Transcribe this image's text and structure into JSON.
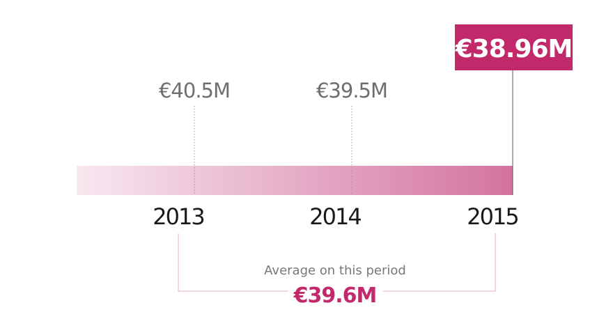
{
  "chart_data": {
    "type": "timeline",
    "categories": [
      "2013",
      "2014",
      "2015"
    ],
    "values": [
      40.5,
      39.5,
      38.96
    ],
    "value_labels": [
      "€40.5M",
      "€39.5M",
      "€38.96M"
    ],
    "highlight": "2015",
    "average": {
      "caption": "Average on this period",
      "value": 39.6,
      "label": "€39.6M"
    },
    "colors": {
      "accent": "#c2296b",
      "gradient_start": "#f8e8f0",
      "gradient_end": "#d3739f",
      "muted_text": "#6e6e6e"
    }
  }
}
